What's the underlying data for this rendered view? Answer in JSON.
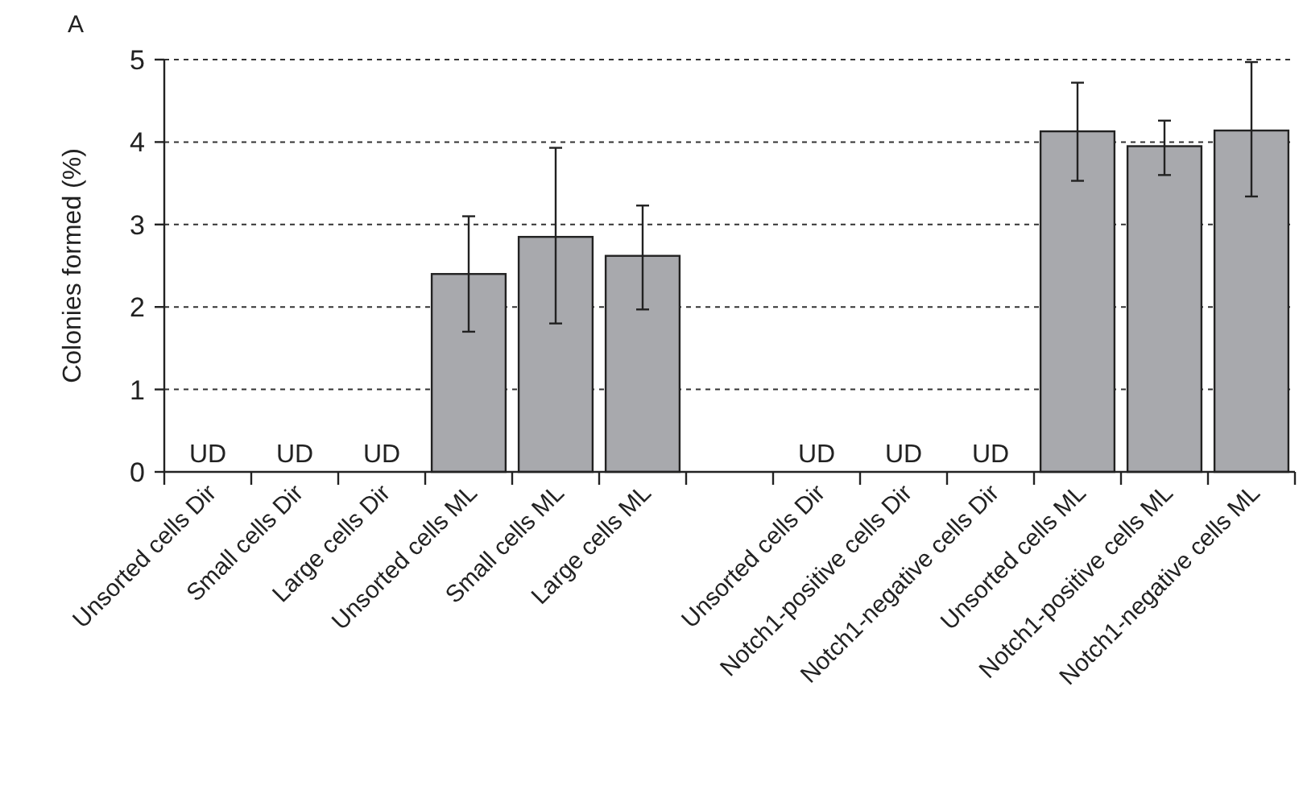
{
  "chart_data": {
    "type": "bar",
    "ylabel": "Colonies formed (%)",
    "annotations": [
      "A"
    ],
    "categories": [
      "Unsorted cells Dir",
      "Small cells Dir",
      "Large cells Dir",
      "Unsorted cells ML",
      "Small cells ML",
      "Large cells ML",
      null,
      "Unsorted cells Dir",
      "Notch1-positive cells Dir",
      "Notch1-negative cells Dir",
      "Unsorted cells ML",
      "Notch1-positive cells ML",
      "Notch1-negative cells ML"
    ],
    "values": [
      0,
      0,
      0,
      2.4,
      2.85,
      2.62,
      null,
      0,
      0,
      0,
      4.13,
      3.95,
      4.14
    ],
    "value_labels": [
      "UD",
      "UD",
      "UD",
      null,
      null,
      null,
      null,
      "UD",
      "UD",
      "UD",
      null,
      null,
      null
    ],
    "errors": [
      null,
      null,
      null,
      [
        1.7,
        3.1
      ],
      [
        1.8,
        3.93
      ],
      [
        1.97,
        3.23
      ],
      null,
      null,
      null,
      null,
      [
        3.53,
        4.72
      ],
      [
        3.6,
        4.26
      ],
      [
        3.34,
        4.97
      ]
    ],
    "color": "#a8a9ad",
    "ylim": [
      0,
      5
    ],
    "yticks": [
      0,
      1,
      2,
      3,
      4,
      5
    ],
    "grid": "y"
  }
}
